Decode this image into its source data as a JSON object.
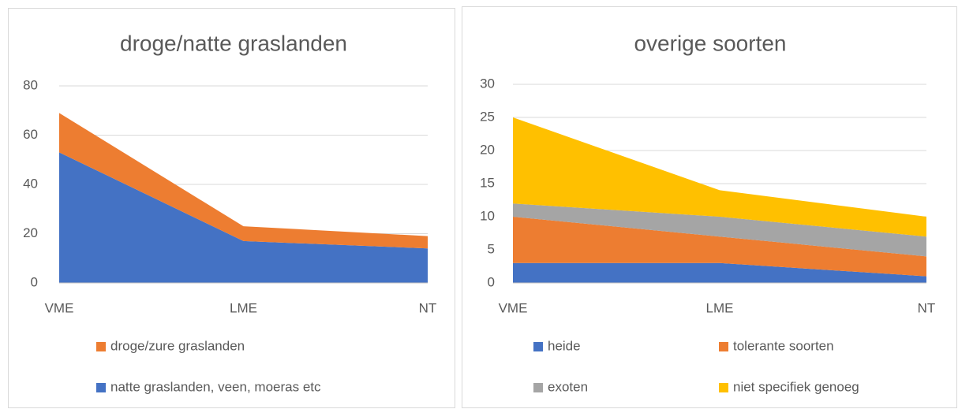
{
  "chart_data": [
    {
      "type": "area",
      "stacked": true,
      "title": "droge/natte graslanden",
      "categories": [
        "VME",
        "LME",
        "NT"
      ],
      "series": [
        {
          "name": "natte graslanden, veen, moeras etc",
          "color": "#4472c4",
          "values": [
            53,
            17,
            14
          ]
        },
        {
          "name": "droge/zure graslanden",
          "color": "#ed7d31",
          "values": [
            16,
            6,
            5
          ]
        }
      ],
      "ylim": [
        0,
        80
      ],
      "yticks": [
        0,
        20,
        40,
        60,
        80
      ],
      "grid": true,
      "legend": "bottom"
    },
    {
      "type": "area",
      "stacked": true,
      "title": "overige soorten",
      "categories": [
        "VME",
        "LME",
        "NT"
      ],
      "series": [
        {
          "name": "heide",
          "color": "#4472c4",
          "values": [
            3,
            3,
            1
          ]
        },
        {
          "name": "tolerante soorten",
          "color": "#ed7d31",
          "values": [
            7,
            4,
            3
          ]
        },
        {
          "name": "exoten",
          "color": "#a5a5a5",
          "values": [
            2,
            3,
            3
          ]
        },
        {
          "name": "niet specifiek genoeg",
          "color": "#ffc000",
          "values": [
            13,
            4,
            3
          ]
        }
      ],
      "ylim": [
        0,
        30
      ],
      "yticks": [
        0,
        5,
        10,
        15,
        20,
        25,
        30
      ],
      "grid": true,
      "legend": "bottom"
    }
  ]
}
